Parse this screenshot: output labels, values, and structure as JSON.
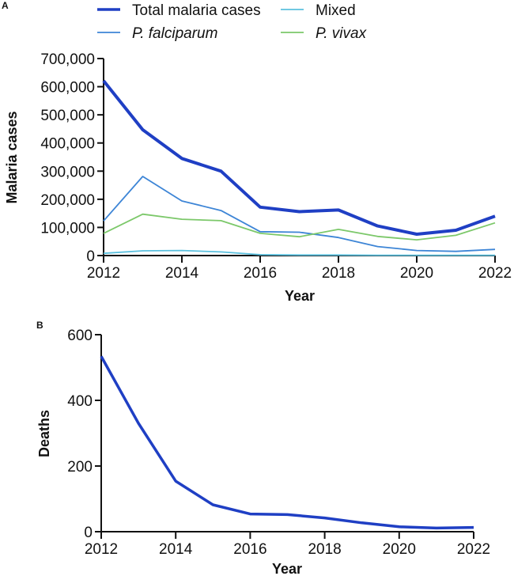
{
  "chart_data": [
    {
      "panel": "A",
      "type": "line",
      "title": "",
      "xlabel": "Year",
      "ylabel": "Malaria cases",
      "x": [
        2012,
        2013,
        2014,
        2015,
        2016,
        2017,
        2018,
        2019,
        2020,
        2021,
        2022
      ],
      "xlim": [
        2012,
        2022
      ],
      "ylim": [
        0,
        700000
      ],
      "xticks": [
        2012,
        2014,
        2016,
        2018,
        2020,
        2022
      ],
      "yticks": [
        0,
        100000,
        200000,
        300000,
        400000,
        500000,
        600000,
        700000
      ],
      "ytick_labels": [
        "0",
        "100,000",
        "200,000",
        "300,000",
        "400,000",
        "500,000",
        "600,000",
        "700,000"
      ],
      "grid": false,
      "legend_position": "top",
      "series": [
        {
          "name": "Total malaria cases",
          "italic": false,
          "color": "#1f3fc4",
          "width": "thick",
          "values": [
            621000,
            447000,
            345000,
            300000,
            172000,
            156000,
            162000,
            105000,
            76000,
            90000,
            140000
          ]
        },
        {
          "name": "Mixed",
          "italic": false,
          "color": "#5bc0de",
          "width": "thin",
          "values": [
            8000,
            17000,
            18000,
            13000,
            3000,
            2000,
            2000,
            1000,
            1000,
            1000,
            1000
          ]
        },
        {
          "name": "P. falciparum",
          "italic": true,
          "color": "#3d85d6",
          "width": "thin",
          "values": [
            123000,
            281000,
            194000,
            160000,
            85000,
            83000,
            64000,
            32000,
            18000,
            15000,
            22000
          ]
        },
        {
          "name": "P. vivax",
          "italic": true,
          "color": "#7cc86a",
          "width": "thin",
          "values": [
            79000,
            147000,
            129000,
            124000,
            79000,
            67000,
            93000,
            68000,
            56000,
            72000,
            116000
          ]
        }
      ]
    },
    {
      "panel": "B",
      "type": "line",
      "title": "",
      "xlabel": "Year",
      "ylabel": "Deaths",
      "x": [
        2012,
        2013,
        2014,
        2015,
        2016,
        2017,
        2018,
        2019,
        2020,
        2021,
        2022
      ],
      "xlim": [
        2012,
        2022
      ],
      "ylim": [
        0,
        600
      ],
      "xticks": [
        2012,
        2014,
        2016,
        2018,
        2020,
        2022
      ],
      "yticks": [
        0,
        200,
        400,
        600
      ],
      "ytick_labels": [
        "0",
        "200",
        "400",
        "600"
      ],
      "grid": false,
      "series": [
        {
          "name": "Deaths",
          "color": "#1f3fc4",
          "values": [
            534,
            330,
            154,
            82,
            54,
            52,
            42,
            27,
            15,
            11,
            13
          ]
        }
      ]
    }
  ]
}
